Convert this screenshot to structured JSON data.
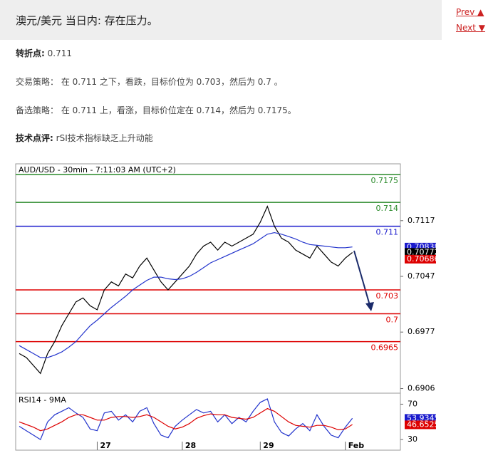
{
  "header": {
    "title": "澳元/美元 当日内: 存在压力。"
  },
  "nav": {
    "prev": "Prev",
    "next": "Next"
  },
  "paragraphs": [
    {
      "label": "转折点:",
      "text": "0.711"
    },
    {
      "label": "交易策略：",
      "text": "在 0.711 之下，看跌，目标价位为 0.703，然后为 0.7 。"
    },
    {
      "label": "备选策略：",
      "text": "在 0.711 上，看涨，目标价位定在 0.714，然后为 0.7175。"
    },
    {
      "label": "技术点评:",
      "text": "rSI技术指标缺乏上升动能"
    }
  ],
  "chart": {
    "type": "line",
    "title": "AUD/USD - 30min - 7:11:03 AM (UTC+2)",
    "categories": [
      null,
      null,
      null,
      null,
      null,
      null,
      null,
      null,
      null,
      null,
      null,
      "27",
      null,
      null,
      null,
      null,
      null,
      null,
      null,
      null,
      null,
      null,
      null,
      "28",
      null,
      null,
      null,
      null,
      null,
      null,
      null,
      null,
      null,
      null,
      "29",
      null,
      null,
      null,
      null,
      null,
      null,
      null,
      null,
      null,
      null,
      null,
      "Feb",
      null
    ],
    "ylim": [
      0.6902,
      0.7175
    ],
    "yticks": [
      0.7117,
      0.7047,
      0.6977,
      0.6906
    ],
    "levels": [
      {
        "value": 0.7175,
        "color": "#2a8a2a"
      },
      {
        "value": 0.714,
        "color": "#2a8a2a"
      },
      {
        "value": 0.711,
        "color": "#1a1acc"
      },
      {
        "value": 0.703,
        "color": "#dd0000"
      },
      {
        "value": 0.7,
        "color": "#dd0000"
      },
      {
        "value": 0.6965,
        "color": "#dd0000"
      }
    ],
    "markers": [
      {
        "value": 0.70838,
        "color": "#1a1acc"
      },
      {
        "value": 0.70772,
        "color": "#000000"
      },
      {
        "value": 0.70686,
        "color": "#dd0000"
      }
    ],
    "series": [
      {
        "color": "#000000",
        "values": [
          0.695,
          0.6945,
          0.6935,
          0.6925,
          0.695,
          0.6965,
          0.6985,
          0.7,
          0.7015,
          0.702,
          0.701,
          0.7005,
          0.703,
          0.704,
          0.7035,
          0.705,
          0.7045,
          0.706,
          0.707,
          0.7055,
          0.704,
          0.703,
          0.704,
          0.705,
          0.706,
          0.7075,
          0.7085,
          0.709,
          0.708,
          0.709,
          0.7085,
          0.709,
          0.7095,
          0.71,
          0.7115,
          0.7135,
          0.711,
          0.7095,
          0.709,
          0.708,
          0.7075,
          0.707,
          0.7085,
          0.7075,
          0.7065,
          0.706,
          0.707,
          0.7077
        ]
      },
      {
        "color": "#2233cc",
        "values": [
          0.696,
          0.6955,
          0.695,
          0.6945,
          0.6945,
          0.6948,
          0.6952,
          0.6958,
          0.6965,
          0.6975,
          0.6985,
          0.6992,
          0.7,
          0.7008,
          0.7015,
          0.7022,
          0.703,
          0.7036,
          0.7042,
          0.7046,
          0.7046,
          0.7044,
          0.7043,
          0.7044,
          0.7047,
          0.7052,
          0.7058,
          0.7064,
          0.7068,
          0.7072,
          0.7076,
          0.708,
          0.7084,
          0.7088,
          0.7094,
          0.71,
          0.7102,
          0.71,
          0.7097,
          0.7094,
          0.709,
          0.7087,
          0.7086,
          0.7085,
          0.7084,
          0.7083,
          0.7083,
          0.7084
        ]
      }
    ],
    "rsi": {
      "title": "RSI14 - 9MA",
      "ylim": [
        18,
        80
      ],
      "yticks": [
        70,
        30
      ],
      "series": [
        {
          "color": "#2233cc",
          "values": [
            45,
            40,
            35,
            30,
            50,
            58,
            62,
            66,
            60,
            55,
            42,
            40,
            60,
            62,
            52,
            58,
            50,
            62,
            66,
            48,
            35,
            32,
            45,
            52,
            58,
            64,
            60,
            62,
            50,
            58,
            48,
            55,
            50,
            62,
            72,
            76,
            50,
            38,
            34,
            42,
            48,
            40,
            58,
            45,
            35,
            32,
            44,
            54
          ]
        },
        {
          "color": "#dd0000",
          "values": [
            50,
            47,
            44,
            40,
            42,
            46,
            50,
            55,
            58,
            58,
            55,
            52,
            52,
            55,
            56,
            56,
            55,
            56,
            58,
            55,
            50,
            45,
            42,
            44,
            48,
            54,
            57,
            59,
            58,
            58,
            55,
            54,
            53,
            55,
            60,
            65,
            62,
            56,
            50,
            46,
            45,
            44,
            46,
            46,
            44,
            41,
            42,
            47
          ]
        }
      ],
      "markers": [
        {
          "value": 53.9345,
          "color": "#1a1acc"
        },
        {
          "value": 46.6525,
          "color": "#dd0000"
        }
      ]
    }
  }
}
